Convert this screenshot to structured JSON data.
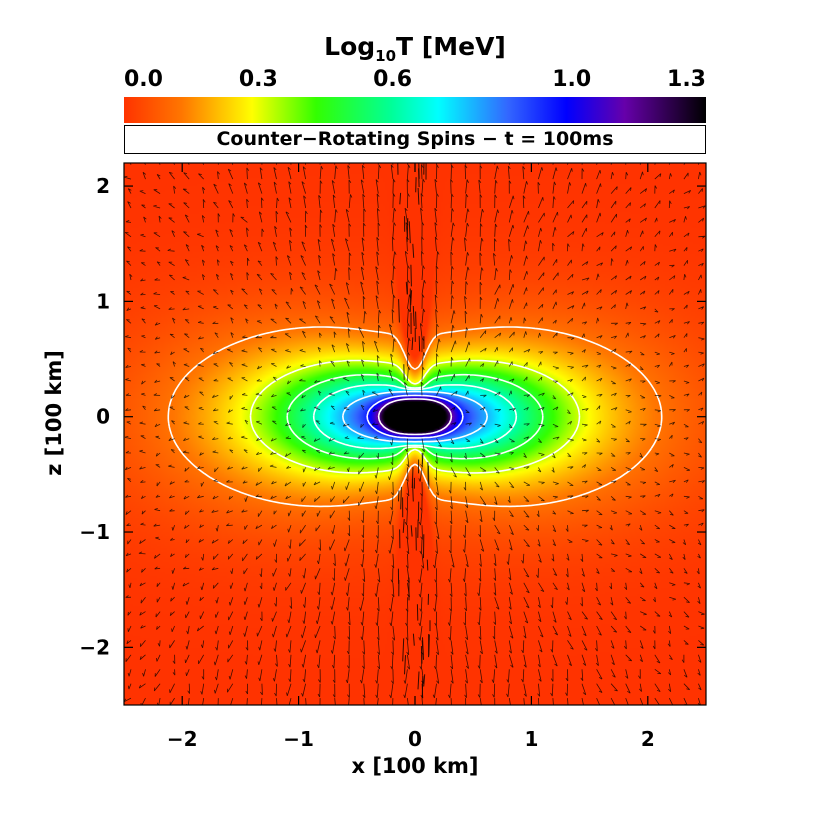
{
  "chart_data": {
    "type": "heatmap",
    "title": "Counter−Rotating Spins − t = 100ms",
    "colorbar": {
      "label_base": "Log",
      "label_sub": "10",
      "label_rest": "T [MeV]",
      "ticks": [
        "0.0",
        "0.3",
        "0.6",
        "1.0",
        "1.3"
      ],
      "tick_values": [
        0.0,
        0.3,
        0.6,
        1.0,
        1.3
      ],
      "range": [
        0.0,
        1.3
      ],
      "colormap": [
        "#ff3300",
        "#ffff00",
        "#33ff00",
        "#00ffff",
        "#0000ff",
        "#000000"
      ]
    },
    "xlabel": "x [100 km]",
    "ylabel": "z [100 km]",
    "xlim": [
      -2.5,
      2.5
    ],
    "ylim": [
      -2.5,
      2.2
    ],
    "xticks": [
      -2,
      -1,
      0,
      1,
      2
    ],
    "xtick_labels": [
      "−2",
      "−1",
      "0",
      "1",
      "2"
    ],
    "yticks": [
      -2,
      -1,
      0,
      1,
      2
    ],
    "ytick_labels": [
      "−2",
      "−1",
      "0",
      "1",
      "2"
    ],
    "contour_levels": [
      0.12,
      0.32,
      0.48,
      0.62,
      0.78,
      0.95,
      1.15
    ],
    "overlay": "velocity vectors (arrows) + white temperature contours"
  }
}
